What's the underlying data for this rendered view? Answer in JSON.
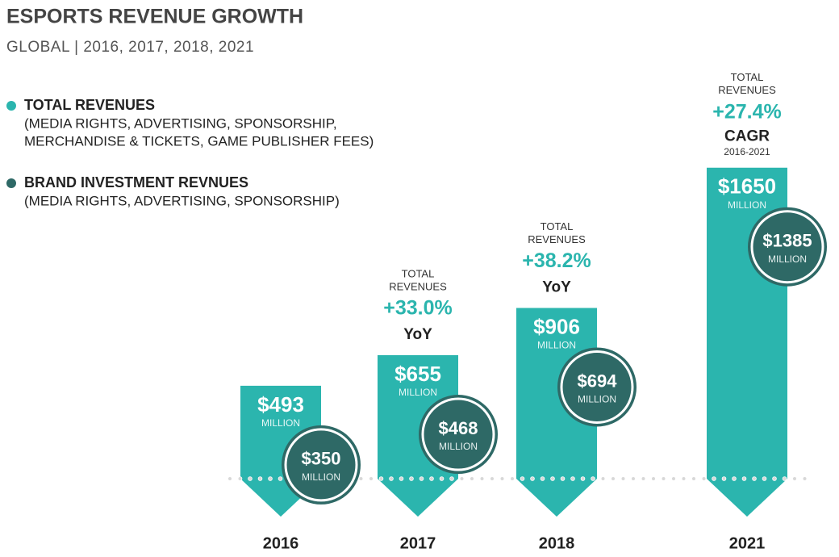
{
  "chart_data": {
    "type": "bar",
    "title": "ESPORTS REVENUE GROWTH",
    "subtitle": "GLOBAL | 2016, 2017, 2018, 2021",
    "categories": [
      "2016",
      "2017",
      "2018",
      "2021"
    ],
    "ylim": [
      0,
      2000
    ],
    "series": [
      {
        "name": "TOTAL REVENUES",
        "color": "#2bb5ae",
        "description": [
          "(MEDIA RIGHTS, ADVERTISING, SPONSORSHIP,",
          "MERCHANDISE & TICKETS, GAME PUBLISHER FEES)"
        ],
        "values": [
          493,
          655,
          906,
          1650
        ],
        "value_labels": [
          "$493",
          "$655",
          "$906",
          "$1650"
        ],
        "unit_label": "MILLION"
      },
      {
        "name": "BRAND INVESTMENT REVNUES",
        "color": "#2e6966",
        "description": [
          "(MEDIA RIGHTS, ADVERTISING, SPONSORSHIP)"
        ],
        "values": [
          350,
          468,
          694,
          1385
        ],
        "value_labels": [
          "$350",
          "$468",
          "$694",
          "$1385"
        ],
        "unit_label": "MILLION"
      }
    ],
    "annotations": [
      {
        "category": 1,
        "lines": [
          "TOTAL",
          "REVENUES"
        ],
        "change": "+33.0%",
        "basis": "YoY"
      },
      {
        "category": 2,
        "lines": [
          "TOTAL",
          "REVENUES"
        ],
        "change": "+38.2%",
        "basis": "YoY"
      },
      {
        "category": 3,
        "lines": [
          "TOTAL",
          "REVENUES"
        ],
        "change": "+27.4%",
        "basis": "CAGR",
        "period": "2016-2021"
      }
    ]
  }
}
